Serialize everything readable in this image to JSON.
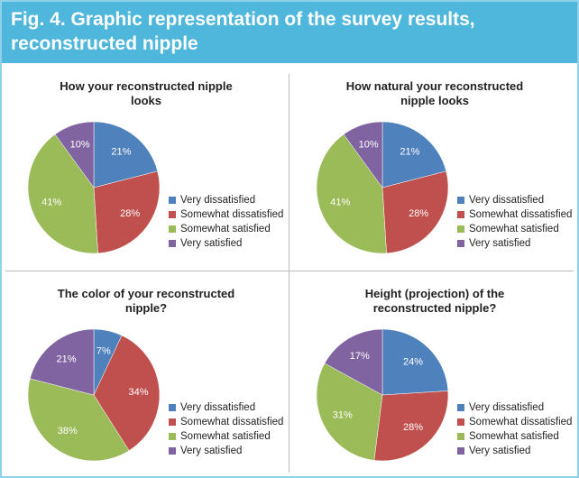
{
  "title": "Fig. 4. Graphic representation of the survey results, reconstructed nipple",
  "chart_data": [
    {
      "type": "pie",
      "title": "How your reconstructed nipple looks",
      "categories": [
        "Very dissatisfied",
        "Somewhat dissatisfied",
        "Somewhat satisfied",
        "Very satisfied"
      ],
      "values": [
        21,
        28,
        41,
        10
      ],
      "value_labels": [
        "21%",
        "28%",
        "41%",
        "10%"
      ],
      "colors": [
        "#4f81bd",
        "#c0504d",
        "#9bbb59",
        "#8064a2"
      ]
    },
    {
      "type": "pie",
      "title": "How natural your reconstructed nipple looks",
      "categories": [
        "Very dissatisfied",
        "Somewhat dissatisfied",
        "Somewhat satisfied",
        "Very satisfied"
      ],
      "values": [
        21,
        28,
        41,
        10
      ],
      "value_labels": [
        "21%",
        "28%",
        "41%",
        "10%"
      ],
      "colors": [
        "#4f81bd",
        "#c0504d",
        "#9bbb59",
        "#8064a2"
      ]
    },
    {
      "type": "pie",
      "title": "The color of your reconstructed nipple?",
      "categories": [
        "Very dissatisfied",
        "Somewhat dissatisfied",
        "Somewhat satisfied",
        "Very satisfied"
      ],
      "values": [
        7,
        34,
        38,
        21
      ],
      "value_labels": [
        "7%",
        "34%",
        "38%",
        "21%"
      ],
      "colors": [
        "#4f81bd",
        "#c0504d",
        "#9bbb59",
        "#8064a2"
      ]
    },
    {
      "type": "pie",
      "title": "Height (projection) of the reconstructed nipple?",
      "categories": [
        "Very dissatisfied",
        "Somewhat dissatisfied",
        "Somewhat satisfied",
        "Very satisfied"
      ],
      "values": [
        24,
        28,
        31,
        17
      ],
      "value_labels": [
        "24%",
        "28%",
        "31%",
        "17%"
      ],
      "colors": [
        "#4f81bd",
        "#c0504d",
        "#9bbb59",
        "#8064a2"
      ]
    }
  ]
}
